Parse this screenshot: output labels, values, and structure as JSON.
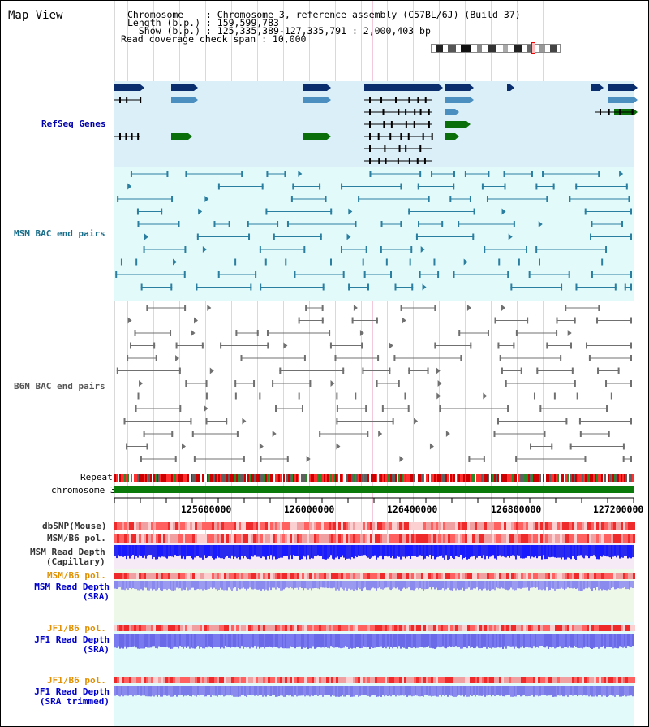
{
  "title": "Map View",
  "header": {
    "line1": "Chromosome    : Chromosome 3, reference assembly (C57BL/6J) (Build 37)",
    "line2": "Length (b.p.) : 159,599,783",
    "line3": "  Show (b.p.) : 125,335,389-127,335,791 : 2,000,403 bp",
    "line4": "Read coverage check span : 10,000"
  },
  "tracks": {
    "refseq": "RefSeq Genes",
    "msm_bac": "MSM BAC end pairs",
    "b6n_bac": "B6N BAC end pairs",
    "repeat": "Repeat",
    "chromosome": "chromosome 3",
    "dbsnp": "dbSNP(Mouse)",
    "msm_b6_pol": "MSM/B6 pol.",
    "msm_depth_cap": "MSM Read Depth\n(Capillary)",
    "msm_b6_pol2": "MSM/B6 pol.",
    "msm_depth_sra": "MSM Read Depth\n(SRA)",
    "jf1_b6_pol": "JF1/B6 pol.",
    "jf1_depth_sra": "JF1 Read Depth\n(SRA)",
    "jf1_b6_pol2": "JF1/B6 pol.",
    "jf1_depth_trim": "JF1 Read Depth\n(SRA trimmed)"
  },
  "axis": {
    "ticks": [
      "125600000",
      "126000000",
      "126400000",
      "126800000",
      "127200000"
    ]
  },
  "colors": {
    "refseq_dark": "#0a2d6e",
    "refseq_mid": "#4a8fc0",
    "refseq_green": "#0a6e0a",
    "msm_color": "#2a7fa0",
    "b6n_color": "#707070",
    "chrom_green": "#0a7a0a",
    "depth_blue": "#1a1aff",
    "depth_light": "#7a7af0"
  }
}
